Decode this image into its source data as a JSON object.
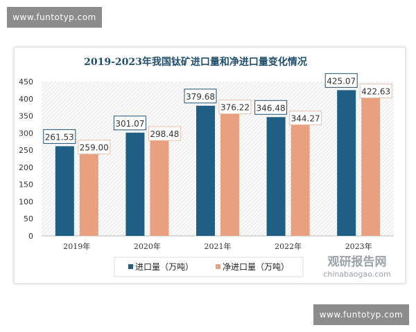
{
  "watermarks": [
    "www.funtotyp.com",
    "www.funtotyp.com"
  ],
  "logo": {
    "name": "观研报告网",
    "url_text": "chinabaogao.com"
  },
  "chart_data": {
    "type": "bar",
    "title": "2019-2023年我国钛矿进口量和净进口量变化情况",
    "categories": [
      "2019年",
      "2020年",
      "2021年",
      "2022年",
      "2023年"
    ],
    "series": [
      {
        "name": "进口量（万吨）",
        "color": "#1f5f86",
        "values": [
          261.53,
          301.07,
          379.68,
          346.48,
          425.07
        ],
        "labels": [
          "261.53",
          "301.07",
          "379.68",
          "346.48",
          "425.07"
        ]
      },
      {
        "name": "净进口量（万吨）",
        "color": "#e9a07f",
        "values": [
          259.0,
          298.48,
          376.22,
          344.27,
          422.63
        ],
        "labels": [
          "259.00",
          "298.48",
          "376.22",
          "344.27",
          "422.63"
        ]
      }
    ],
    "ylim": [
      0,
      450
    ],
    "yticks": [
      0,
      50,
      100,
      150,
      200,
      250,
      300,
      350,
      400,
      450
    ],
    "grid": false,
    "legend": "bottom"
  }
}
